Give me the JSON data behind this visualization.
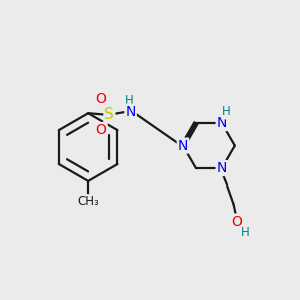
{
  "background_color": "#ebebeb",
  "atom_colors": {
    "C": "#1a1a1a",
    "N": "#0000ee",
    "O": "#ee0000",
    "S": "#c8c800",
    "NH": "#008080",
    "H_teal": "#008080"
  },
  "bond_color": "#1a1a1a",
  "bond_width": 1.6,
  "figsize": [
    3.0,
    3.0
  ],
  "dpi": 100,
  "xlim": [
    0,
    10
  ],
  "ylim": [
    0,
    10
  ]
}
